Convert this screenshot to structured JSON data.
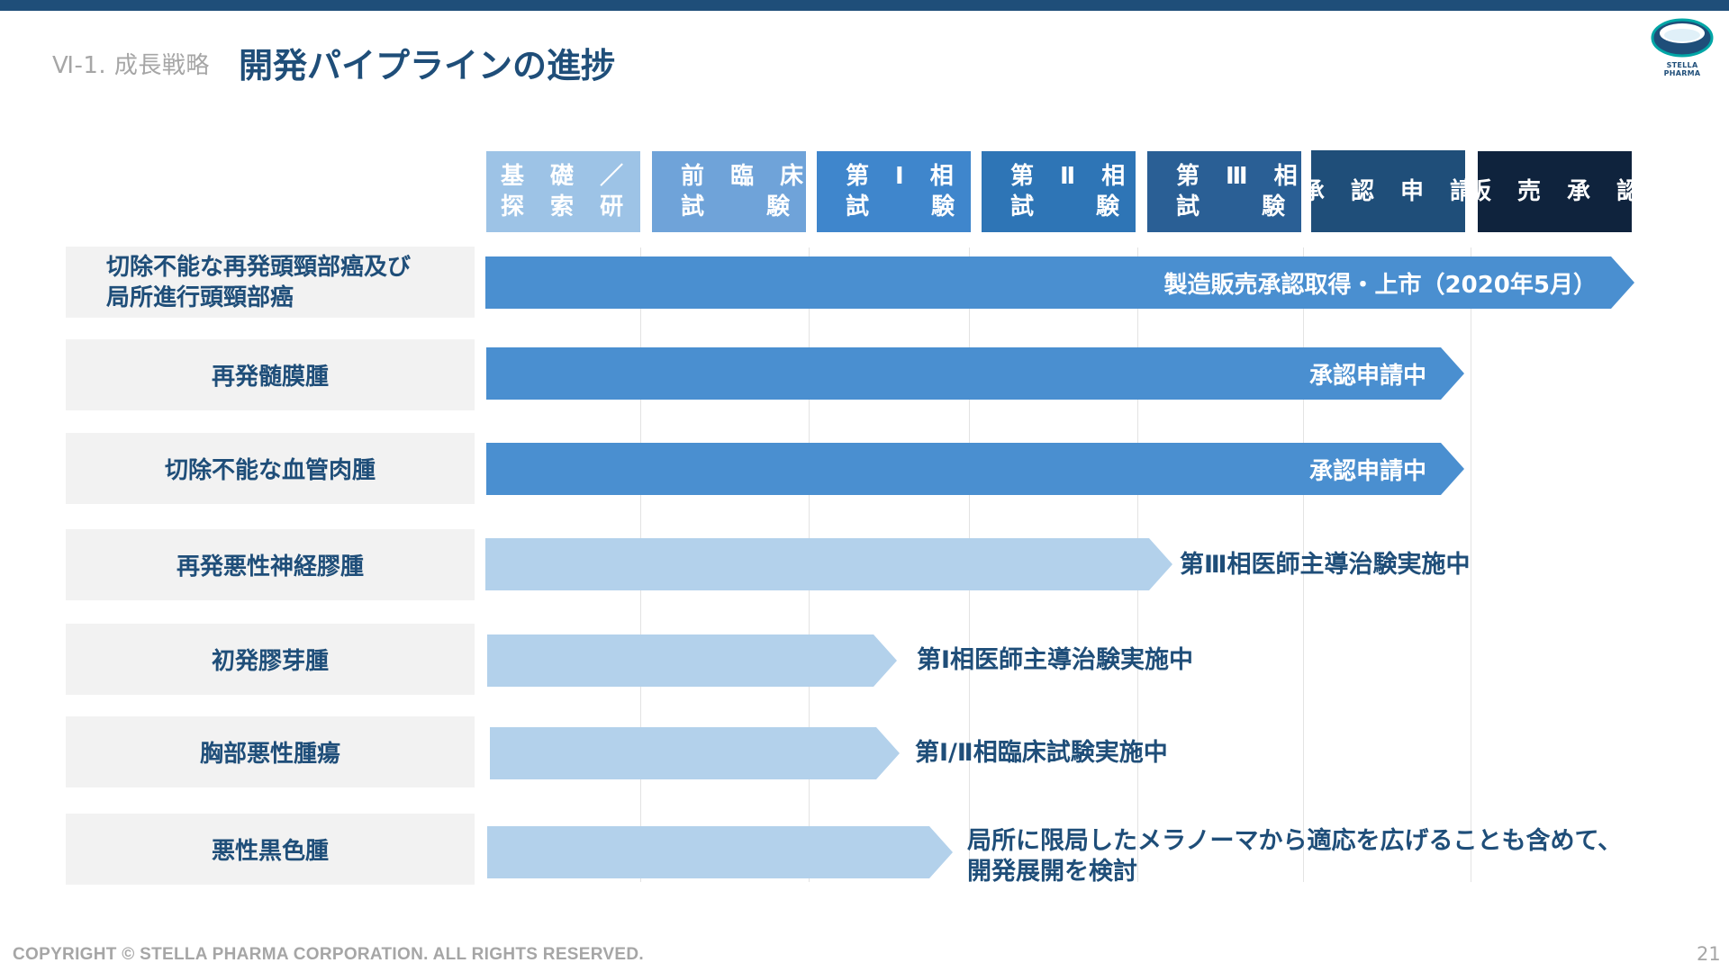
{
  "header": {
    "section": "Ⅵ-1. 成長戦略",
    "title": "開発パイプラインの進捗",
    "logo_text": "STELLA PHARMA"
  },
  "phases": [
    {
      "line1": "基 礎 ／",
      "line2": "探 索 研 究",
      "color": "#9dc3e6"
    },
    {
      "line1": "前 臨 床",
      "line2": "試 験",
      "color": "#6fa3d9"
    },
    {
      "line1": "第 Ⅰ 相",
      "line2": "試 験",
      "color": "#3f86cc"
    },
    {
      "line1": "第 Ⅱ 相",
      "line2": "試 験",
      "color": "#2e75b6"
    },
    {
      "line1": "第 Ⅲ 相",
      "line2": "試 験",
      "color": "#2a5f95"
    },
    {
      "line1": "承 認 申 請",
      "color": "#1f4e79"
    },
    {
      "line1": "販 売 承 認",
      "color": "#0f233d"
    }
  ],
  "rows": [
    {
      "indication_line1": "切除不能な再発頭頸部癌及び",
      "indication_line2": "局所進行頭頸部癌",
      "status": "製造販売承認取得・上市（2020年5月）",
      "bar_style": "dark",
      "progress_phase": 7
    },
    {
      "indication": "再発髄膜腫",
      "status": "承認申請中",
      "bar_style": "dark",
      "progress_phase": 6
    },
    {
      "indication": "切除不能な血管肉腫",
      "status": "承認申請中",
      "bar_style": "dark",
      "progress_phase": 6
    },
    {
      "indication": "再発悪性神経膠腫",
      "status": "第Ⅲ相医師主導治験実施中",
      "bar_style": "light",
      "progress_phase": 4
    },
    {
      "indication": "初発膠芽腫",
      "status": "第Ⅰ相医師主導治験実施中",
      "bar_style": "light",
      "progress_phase": 2.5
    },
    {
      "indication": "胸部悪性腫瘍",
      "status": "第Ⅰ/Ⅱ相臨床試験実施中",
      "bar_style": "light",
      "progress_phase": 2.5
    },
    {
      "indication": "悪性黒色腫",
      "status_line1": "局所に限局したメラノーマから適応を広げることも含めて、",
      "status_line2": "開発展開を検討",
      "bar_style": "light",
      "progress_phase": 2.8
    }
  ],
  "footer": {
    "copyright": "COPYRIGHT © STELLA PHARMA CORPORATION. ALL RIGHTS RESERVED.",
    "page_number": "21"
  }
}
